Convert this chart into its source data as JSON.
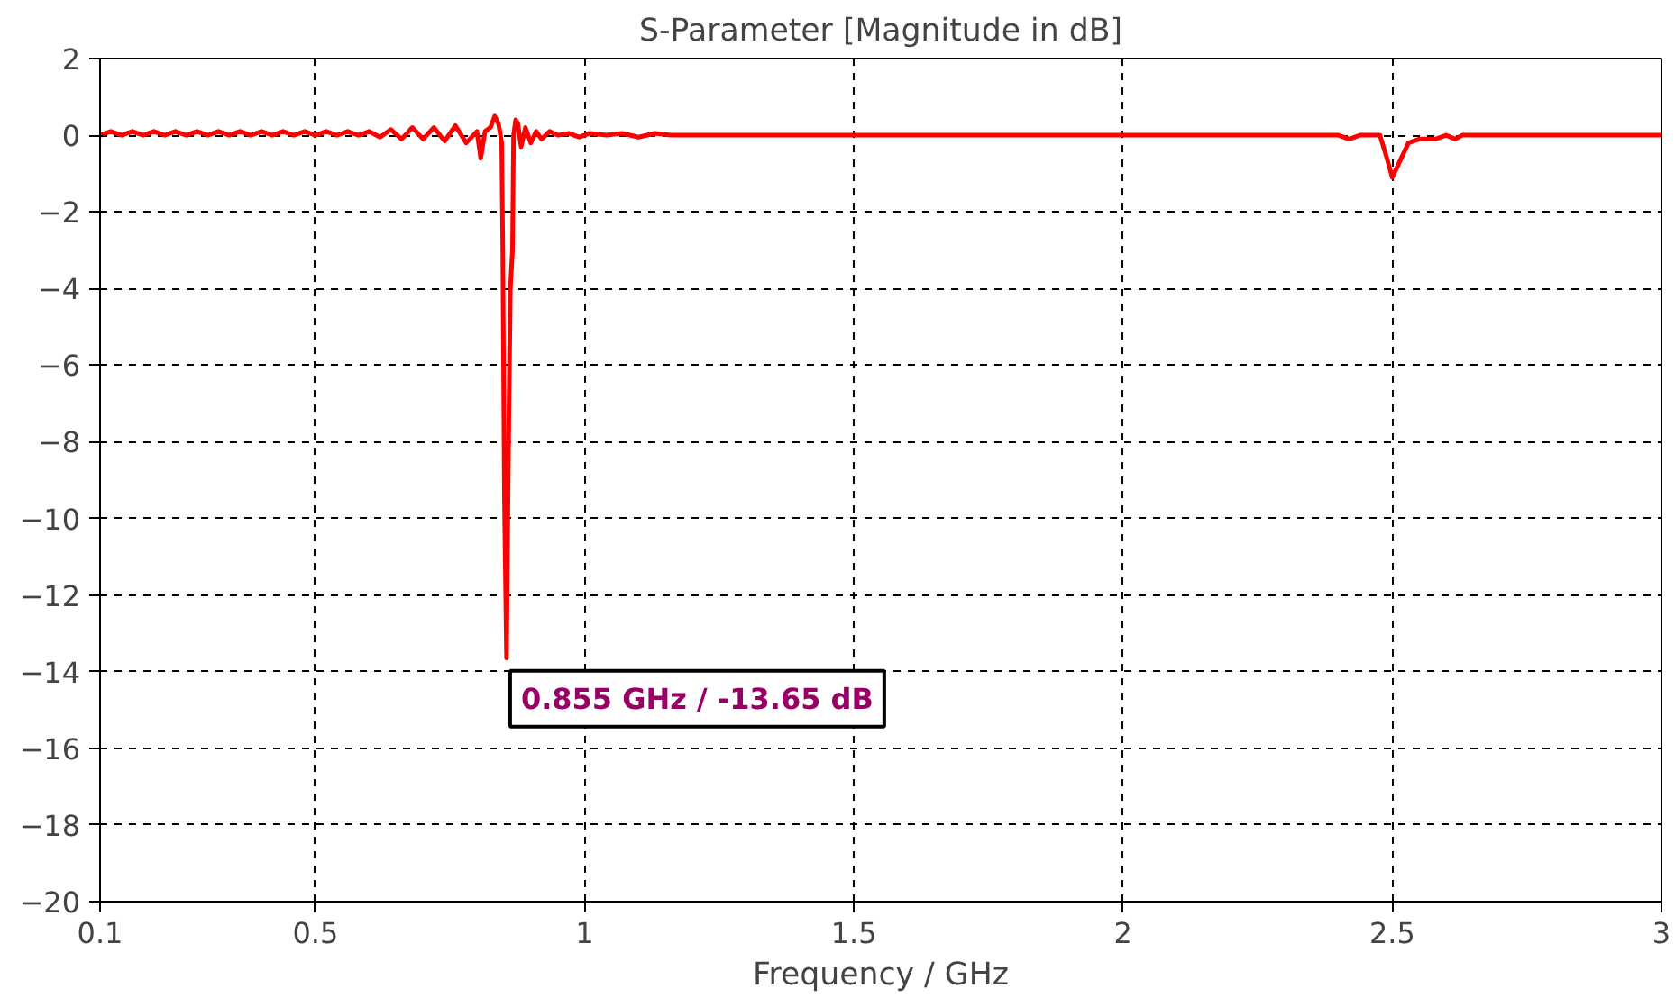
{
  "chart_data": {
    "type": "line",
    "title": "S-Parameter [Magnitude in dB]",
    "xlabel": "Frequency / GHz",
    "series": [
      {
        "color": "#ff0000",
        "x": [
          0.1,
          0.12,
          0.14,
          0.16,
          0.18,
          0.2,
          0.22,
          0.24,
          0.26,
          0.28,
          0.3,
          0.32,
          0.34,
          0.36,
          0.38,
          0.4,
          0.42,
          0.44,
          0.46,
          0.48,
          0.5,
          0.52,
          0.54,
          0.56,
          0.58,
          0.6,
          0.62,
          0.64,
          0.66,
          0.68,
          0.7,
          0.72,
          0.74,
          0.76,
          0.78,
          0.8,
          0.807,
          0.815,
          0.825,
          0.833,
          0.84,
          0.846,
          0.848,
          0.851,
          0.855,
          0.858,
          0.862,
          0.866,
          0.868,
          0.872,
          0.876,
          0.882,
          0.89,
          0.9,
          0.91,
          0.92,
          0.935,
          0.95,
          0.97,
          0.99,
          1.01,
          1.04,
          1.07,
          1.1,
          1.13,
          1.16,
          1.2,
          1.5,
          2.0,
          2.4,
          2.42,
          2.44,
          2.477,
          2.49,
          2.5,
          2.51,
          2.53,
          2.55,
          2.58,
          2.6,
          2.617,
          2.63,
          3.0
        ],
        "values": [
          0,
          0.1,
          0,
          0.1,
          0,
          0.1,
          0,
          0.1,
          0,
          0.1,
          0,
          0.1,
          0,
          0.1,
          0,
          0.1,
          0,
          0.1,
          0,
          0.1,
          0,
          0.1,
          0,
          0.1,
          0,
          0.1,
          -0.05,
          0.15,
          -0.1,
          0.2,
          -0.1,
          0.2,
          -0.15,
          0.25,
          -0.2,
          0.1,
          -0.6,
          0.1,
          0.2,
          0.5,
          0.3,
          -0.2,
          -3,
          -9.5,
          -13.65,
          -9,
          -4,
          -3,
          0,
          0.4,
          0.3,
          -0.3,
          0.2,
          -0.2,
          0.1,
          -0.1,
          0.1,
          0,
          0.05,
          -0.05,
          0.05,
          0,
          0.05,
          -0.05,
          0.05,
          0,
          0,
          0,
          0,
          0,
          -0.1,
          0,
          0,
          -0.6,
          -1.1,
          -0.8,
          -0.2,
          -0.1,
          -0.1,
          0,
          -0.1,
          0,
          0
        ]
      }
    ],
    "xlim": [
      0.1,
      3
    ],
    "ylim": [
      -20,
      2
    ],
    "xticks": [
      0.1,
      0.5,
      1,
      1.5,
      2,
      2.5,
      3
    ],
    "yticks": [
      -20,
      -18,
      -16,
      -14,
      -12,
      -10,
      -8,
      -6,
      -4,
      -2,
      0,
      2
    ],
    "grid": true,
    "line_style": "solid",
    "marker": "none",
    "annotations": [
      {
        "text": "0.855 GHz / -13.65 dB",
        "x": 0.855,
        "y": -13.65
      }
    ]
  }
}
